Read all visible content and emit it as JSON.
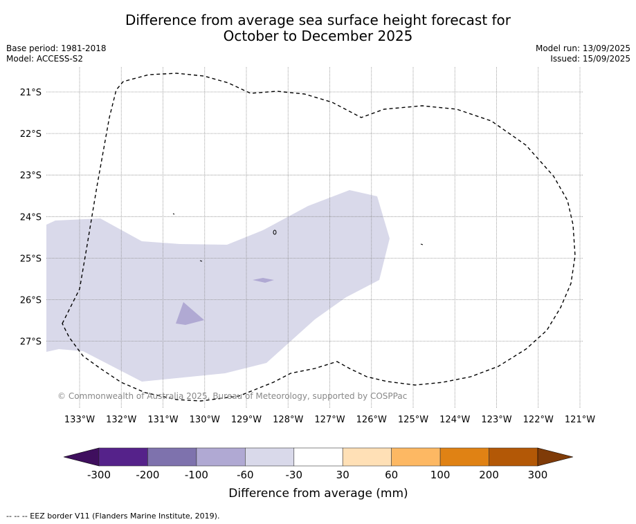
{
  "title": {
    "line1": "Difference from average sea surface height forecast for",
    "line2": "October to December 2025"
  },
  "meta_left": {
    "base_period": "Base period: 1981-2018",
    "model": "Model: ACCESS-S2"
  },
  "meta_right": {
    "model_run": "Model run: 13/09/2025",
    "issued": "Issued: 15/09/2025"
  },
  "map": {
    "lon_ticks": [
      "133°W",
      "132°W",
      "131°W",
      "130°W",
      "129°W",
      "128°W",
      "127°W",
      "126°W",
      "125°W",
      "124°W",
      "123°W",
      "122°W",
      "121°W"
    ],
    "lat_ticks": [
      "21°S",
      "22°S",
      "23°S",
      "24°S",
      "25°S",
      "26°S",
      "27°S"
    ],
    "copyright": "© Commonwealth of Australia 2025, Bureau of Meteorology, supported by COSPPac",
    "shading_color": "#d9d9ea",
    "eez_style": "dashed black"
  },
  "colorbar": {
    "ticks": [
      "-300",
      "-200",
      "-100",
      "-60",
      "-30",
      "30",
      "60",
      "100",
      "200",
      "300"
    ],
    "colors": [
      "#3f0f5e",
      "#55228a",
      "#7e72ad",
      "#b0a9d3",
      "#d9d9ea",
      "#ffffff",
      "#ffe0b6",
      "#fdb863",
      "#e08214",
      "#b35806",
      "#7f3b08"
    ],
    "label": "Difference from average (mm)"
  },
  "footer": "-- -- -- EEZ border V11 (Flanders Marine Institute, 2019)."
}
